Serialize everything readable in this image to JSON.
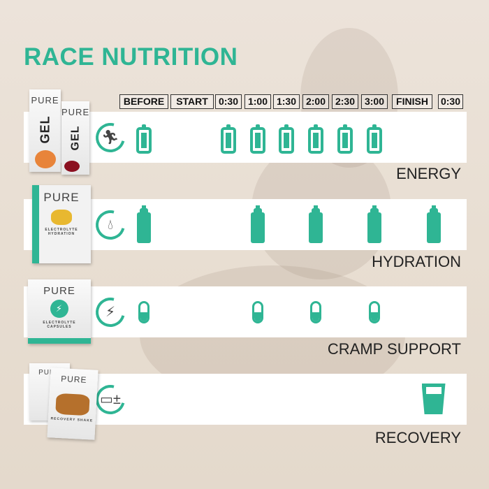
{
  "title": "RACE NUTRITION",
  "columns": [
    "BEFORE",
    "START",
    "0:30",
    "1:00",
    "1:30",
    "2:00",
    "2:30",
    "3:00",
    "FINISH",
    "0:30"
  ],
  "accent": "#2fb594",
  "rows": [
    {
      "label": "ENERGY",
      "icon": "runner-icon",
      "marker": "battery-icon",
      "product": {
        "brand": "PURE",
        "text": "GEL"
      },
      "markers": [
        0,
        2,
        3,
        4,
        5,
        6,
        7
      ]
    },
    {
      "label": "HYDRATION",
      "icon": "water-drop-icon",
      "marker": "bottle-icon",
      "product": {
        "brand": "PURE",
        "text": "ELECTROLYTE HYDRATION"
      },
      "markers": [
        0,
        3,
        5,
        7,
        8.5
      ]
    },
    {
      "label": "CRAMP SUPPORT",
      "icon": "lightning-icon",
      "marker": "capsule-icon",
      "product": {
        "brand": "PURE",
        "text": "ELECTROLYTE CAPSULES"
      },
      "markers": [
        0,
        3,
        5,
        7
      ]
    },
    {
      "label": "RECOVERY",
      "icon": "battery-charge-icon",
      "marker": "glass-icon",
      "product": {
        "brand": "PURE",
        "text": "RECOVERY SHAKE"
      },
      "markers": [
        8.5
      ]
    }
  ]
}
